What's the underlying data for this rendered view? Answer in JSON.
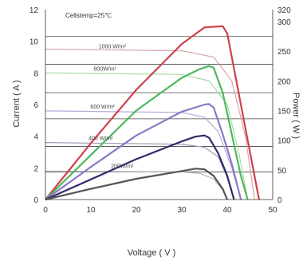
{
  "chart_data": {
    "type": "line",
    "annotation": "Cellstemp=25℃",
    "xlabel": "Voltage ( V )",
    "ylabel_left": "Current ( A )",
    "ylabel_right": "Power ( W )",
    "xlim": [
      0,
      50
    ],
    "ylim_left": [
      0,
      12
    ],
    "ylim_right": [
      0,
      320
    ],
    "xticks": [
      "0",
      "10",
      "20",
      "30",
      "40",
      "50"
    ],
    "yticks_left": [
      "0",
      "2",
      "4",
      "6",
      "8",
      "10",
      "12"
    ],
    "yticks_right": [
      "0",
      "50",
      "100",
      "150",
      "200",
      "250",
      "300",
      "320"
    ],
    "grid": "horizontal lines at irradiance curve levels",
    "irradiance_labels": [
      "1000 W/m²",
      "800W/m²",
      "600 W/m²",
      "400 W/m²",
      "200W/m²"
    ],
    "iv_curves": [
      {
        "irradiance": "1000 W/m²",
        "color": "#d9a3a8",
        "points": [
          [
            0,
            9.5
          ],
          [
            30,
            9.4
          ],
          [
            37,
            9.0
          ],
          [
            41,
            7.5
          ],
          [
            44,
            4
          ],
          [
            46,
            0
          ]
        ]
      },
      {
        "irradiance": "800W/m²",
        "color": "#a8dba8",
        "points": [
          [
            0,
            8.0
          ],
          [
            30,
            7.9
          ],
          [
            36,
            7.5
          ],
          [
            40,
            6.0
          ],
          [
            42.5,
            3
          ],
          [
            44.5,
            0
          ]
        ]
      },
      {
        "irradiance": "600 W/m²",
        "color": "#b7aadc",
        "points": [
          [
            0,
            5.6
          ],
          [
            30,
            5.5
          ],
          [
            35,
            5.2
          ],
          [
            38,
            4.3
          ],
          [
            41,
            2
          ],
          [
            43,
            0
          ]
        ]
      },
      {
        "irradiance": "400 W/m²",
        "color": "#9e9eb4",
        "points": [
          [
            0,
            3.6
          ],
          [
            30,
            3.5
          ],
          [
            35,
            3.3
          ],
          [
            38,
            2.7
          ],
          [
            40,
            1.4
          ],
          [
            41.5,
            0
          ]
        ]
      },
      {
        "irradiance": "200W/m²",
        "color": "#b4b4b4",
        "points": [
          [
            0,
            1.8
          ],
          [
            30,
            1.75
          ],
          [
            34,
            1.65
          ],
          [
            37,
            1.3
          ],
          [
            39,
            0.6
          ],
          [
            40,
            0
          ]
        ]
      }
    ],
    "power_curves": [
      {
        "irradiance": "1000 W/m²",
        "color": "#d0404d",
        "points": [
          [
            0,
            0
          ],
          [
            10,
            95
          ],
          [
            20,
            185
          ],
          [
            30,
            262
          ],
          [
            35,
            290
          ],
          [
            39,
            292
          ],
          [
            40,
            280
          ],
          [
            42,
            200
          ],
          [
            44.5,
            100
          ],
          [
            47,
            0
          ]
        ]
      },
      {
        "irradiance": "800W/m²",
        "color": "#4cb85c",
        "points": [
          [
            0,
            0
          ],
          [
            10,
            75
          ],
          [
            20,
            150
          ],
          [
            30,
            205
          ],
          [
            34,
            220
          ],
          [
            36,
            225
          ],
          [
            37,
            222
          ],
          [
            39,
            180
          ],
          [
            41,
            110
          ],
          [
            43,
            40
          ],
          [
            44.5,
            0
          ]
        ]
      },
      {
        "irradiance": "600 W/m²",
        "color": "#8a78c8",
        "points": [
          [
            0,
            0
          ],
          [
            10,
            55
          ],
          [
            20,
            108
          ],
          [
            30,
            148
          ],
          [
            35,
            160
          ],
          [
            36,
            161
          ],
          [
            37,
            155
          ],
          [
            39,
            110
          ],
          [
            41,
            60
          ],
          [
            43,
            0
          ]
        ]
      },
      {
        "irradiance": "400 W/m²",
        "color": "#2c2c6a",
        "points": [
          [
            0,
            0
          ],
          [
            10,
            34
          ],
          [
            20,
            68
          ],
          [
            30,
            98
          ],
          [
            33,
            106
          ],
          [
            35,
            108
          ],
          [
            36,
            104
          ],
          [
            38,
            78
          ],
          [
            40,
            40
          ],
          [
            41.5,
            0
          ]
        ]
      },
      {
        "irradiance": "200W/m²",
        "color": "#555555",
        "points": [
          [
            0,
            0
          ],
          [
            10,
            18
          ],
          [
            20,
            35
          ],
          [
            30,
            48
          ],
          [
            33,
            52
          ],
          [
            35,
            51
          ],
          [
            37,
            40
          ],
          [
            39,
            18
          ],
          [
            40,
            0
          ]
        ]
      }
    ],
    "gridlines_left": [
      1.75,
      3.35,
      5.1,
      6.75,
      8.55,
      10.3
    ]
  }
}
